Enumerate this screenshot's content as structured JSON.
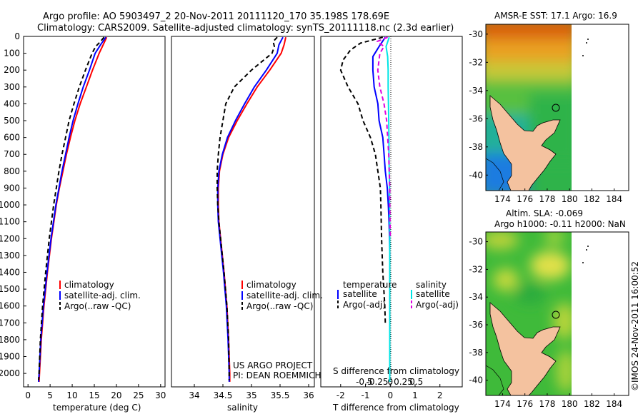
{
  "header": {
    "title_line1": "Argo profile: AO 5903497_2 20-Nov-2011 20111120_170 35.198S 178.69E",
    "title_line2": "Climatology: CARS2009. Satellite-adjusted climatology: synTS_20111118.nc (2.3d earlier)"
  },
  "stamp": "©IMOS 24-Nov-2011 16:00:52",
  "project_text": [
    "US ARGO PROJECT",
    "PI: DEAN ROEMMICH"
  ],
  "colors": {
    "climatology": "#ff0000",
    "satellite": "#0000ff",
    "argo": "#000000",
    "salinity_satellite": "#00e5e5",
    "salinity_argo": "#e000e0",
    "land": "#f4c29f"
  },
  "chart_data": [
    {
      "id": "temperature",
      "type": "line",
      "xlabel": "temperature (deg C)",
      "ylabel": "",
      "xlim": [
        -1,
        31
      ],
      "ylim": [
        2080,
        0
      ],
      "xticks": [
        0,
        5,
        10,
        15,
        20,
        25,
        30
      ],
      "yticks": [
        0,
        100,
        200,
        300,
        400,
        500,
        600,
        700,
        800,
        900,
        1000,
        1100,
        1200,
        1300,
        1400,
        1500,
        1600,
        1700,
        1800,
        1900,
        2000
      ],
      "legend": [
        "climatology",
        "satellite-adj. clim.",
        "Argo(..raw -QC)"
      ],
      "series": [
        {
          "name": "climatology",
          "style": "solid",
          "color": "#ff0000",
          "depth": [
            5,
            50,
            100,
            200,
            300,
            400,
            500,
            600,
            700,
            800,
            900,
            1000,
            1200,
            1400,
            1600,
            1800,
            2000,
            2050
          ],
          "values": [
            17.8,
            17.0,
            16.1,
            14.6,
            13.2,
            11.8,
            10.6,
            9.6,
            8.7,
            7.9,
            7.1,
            6.4,
            5.3,
            4.4,
            3.6,
            3.0,
            2.6,
            2.5
          ]
        },
        {
          "name": "satellite-adj. clim.",
          "style": "solid",
          "color": "#0000ff",
          "depth": [
            5,
            50,
            100,
            200,
            300,
            400,
            500,
            600,
            700,
            800,
            900,
            1000,
            1200,
            1400,
            1600,
            1800,
            2000,
            2050
          ],
          "values": [
            17.6,
            16.4,
            15.2,
            13.9,
            12.5,
            11.3,
            10.2,
            9.3,
            8.5,
            7.7,
            7.0,
            6.3,
            5.2,
            4.3,
            3.5,
            2.9,
            2.5,
            2.4
          ]
        },
        {
          "name": "Argo(..raw -QC)",
          "style": "dashed",
          "color": "#000000",
          "depth": [
            5,
            30,
            60,
            100,
            200,
            300,
            400,
            500,
            600,
            700,
            800,
            900,
            1000,
            1200,
            1400,
            1600,
            1800,
            2000,
            2040
          ],
          "values": [
            17.2,
            16.4,
            15.3,
            14.5,
            13.0,
            11.6,
            10.4,
            9.3,
            8.5,
            7.7,
            7.0,
            6.4,
            5.8,
            4.8,
            4.0,
            3.3,
            2.8,
            2.5,
            2.4
          ]
        }
      ]
    },
    {
      "id": "salinity",
      "type": "line",
      "xlabel": "salinity",
      "ylabel": "",
      "xlim": [
        33.6,
        36.1
      ],
      "ylim": [
        2080,
        0
      ],
      "xticks": [
        34,
        34.5,
        35,
        35.5,
        36
      ],
      "yticks": [
        0,
        100,
        200,
        300,
        400,
        500,
        600,
        700,
        800,
        900,
        1000,
        1100,
        1200,
        1300,
        1400,
        1500,
        1600,
        1700,
        1800,
        1900,
        2000
      ],
      "legend": [
        "climatology",
        "satellite-adj. clim.",
        "Argo(..raw -QC)"
      ],
      "series": [
        {
          "name": "climatology",
          "style": "solid",
          "color": "#ff0000",
          "depth": [
            5,
            50,
            100,
            200,
            300,
            400,
            500,
            600,
            700,
            800,
            900,
            1000,
            1100,
            1200,
            1400,
            1600,
            1800,
            2000,
            2050
          ],
          "values": [
            35.6,
            35.57,
            35.52,
            35.32,
            35.1,
            34.92,
            34.75,
            34.6,
            34.5,
            34.44,
            34.42,
            34.42,
            34.43,
            34.46,
            34.52,
            34.57,
            34.6,
            34.62,
            34.62
          ]
        },
        {
          "name": "satellite-adj. clim.",
          "style": "solid",
          "color": "#0000ff",
          "depth": [
            5,
            50,
            100,
            200,
            300,
            400,
            500,
            600,
            700,
            800,
            900,
            1000,
            1100,
            1200,
            1400,
            1600,
            1800,
            2000,
            2050
          ],
          "values": [
            35.55,
            35.48,
            35.45,
            35.26,
            35.05,
            34.88,
            34.72,
            34.58,
            34.49,
            34.43,
            34.41,
            34.41,
            34.42,
            34.45,
            34.51,
            34.56,
            34.59,
            34.61,
            34.61
          ]
        },
        {
          "name": "Argo(..raw -QC)",
          "style": "dashed",
          "color": "#000000",
          "depth": [
            5,
            30,
            60,
            100,
            200,
            300,
            400,
            500,
            600,
            700,
            800,
            900,
            1000,
            1100,
            1200,
            1400,
            1600,
            1800,
            2000,
            2040
          ],
          "values": [
            35.45,
            35.38,
            35.4,
            35.36,
            35.0,
            34.7,
            34.55,
            34.5,
            34.45,
            34.42,
            34.4,
            34.4,
            34.41,
            34.43,
            34.46,
            34.52,
            34.57,
            34.6,
            34.61,
            34.61
          ]
        }
      ]
    },
    {
      "id": "difference",
      "type": "line",
      "xlabel": "T difference from climatology",
      "xlabel_top": "S difference from climatology",
      "xlim": [
        -2.8,
        2.9
      ],
      "ylim": [
        2080,
        0
      ],
      "xticks": [
        -2,
        -1,
        0,
        1,
        2
      ],
      "xtick_labels": [
        "-2",
        "-1",
        "0",
        "1",
        "2"
      ],
      "top_ticks": [
        -0.5,
        -0.25,
        0,
        0.25,
        0.5
      ],
      "top_tick_labels": [
        "-0.5",
        "-0.25",
        "0",
        "0.25",
        "0.5"
      ],
      "legend_temperature_title": "temperature",
      "legend_salinity_title": "salinity",
      "legend": [
        "satellite",
        "Argo(-adj)",
        "satellite",
        "Argo(-adj)"
      ],
      "series": [
        {
          "name": "satellite",
          "group": "temperature",
          "style": "solid",
          "color": "#0000ff",
          "depth": [
            5,
            60,
            120,
            200,
            300,
            400,
            500,
            600,
            700,
            800,
            900,
            1000,
            1100,
            1200,
            1300
          ],
          "values": [
            -0.2,
            -0.45,
            -0.7,
            -0.7,
            -0.65,
            -0.5,
            -0.45,
            -0.3,
            -0.25,
            -0.2,
            -0.12,
            -0.08,
            -0.05,
            -0.03,
            -0.02
          ]
        },
        {
          "name": "Argo(-adj)",
          "group": "temperature",
          "style": "dashed",
          "color": "#000000",
          "depth": [
            5,
            40,
            80,
            140,
            200,
            300,
            400,
            500,
            600,
            700,
            800,
            900,
            1000,
            1200,
            1400,
            1600,
            1700
          ],
          "values": [
            -0.3,
            -1.2,
            -1.6,
            -1.9,
            -2.0,
            -1.7,
            -1.3,
            -1.1,
            -0.8,
            -0.6,
            -0.5,
            -0.4,
            -0.38,
            -0.35,
            -0.3,
            -0.22,
            -0.2
          ]
        },
        {
          "name": "satellite",
          "group": "salinity",
          "style": "solid",
          "color": "#00e5e5",
          "depth": [
            5,
            60,
            120,
            200,
            300,
            400,
            500,
            600,
            700,
            800,
            900,
            1000,
            1200,
            1400,
            1600,
            1800,
            2000,
            2050
          ],
          "values": [
            -0.02,
            -0.08,
            -0.05,
            -0.04,
            -0.04,
            -0.035,
            -0.03,
            -0.025,
            -0.025,
            -0.02,
            -0.015,
            -0.015,
            -0.01,
            -0.01,
            -0.01,
            -0.01,
            -0.01,
            -0.01
          ]
        },
        {
          "name": "Argo(-adj)",
          "group": "salinity",
          "style": "dashed",
          "color": "#e000e0",
          "depth": [
            5,
            30,
            60,
            100,
            200,
            300,
            400,
            500,
            600,
            700,
            800,
            900,
            1000,
            1100,
            1200
          ],
          "values": [
            -0.05,
            -0.25,
            -0.12,
            -0.2,
            -0.24,
            -0.2,
            -0.12,
            -0.07,
            -0.05,
            -0.03,
            -0.02,
            -0.01,
            -0.01,
            -0.005,
            0
          ]
        }
      ]
    },
    {
      "id": "sst_map",
      "type": "heatmap",
      "title": "AMSR-E SST: 17.1  Argo: 16.9",
      "xlim": [
        172.5,
        185.3
      ],
      "ylim": [
        -41.1,
        -29.3
      ],
      "xticks": [
        174,
        176,
        178,
        180,
        182,
        184
      ],
      "yticks": [
        -30,
        -32,
        -34,
        -36,
        -38,
        -40
      ],
      "float_position": {
        "lon": 178.69,
        "lat": -35.198
      }
    },
    {
      "id": "sla_map",
      "type": "heatmap",
      "title_line1": "Altim. SLA: -0.069",
      "title_line2": "Argo h1000: -0.11 h2000: NaN",
      "xlim": [
        172.5,
        185.3
      ],
      "ylim": [
        -41.1,
        -29.3
      ],
      "xticks": [
        174,
        176,
        178,
        180,
        182,
        184
      ],
      "yticks": [
        -30,
        -32,
        -34,
        -36,
        -38,
        -40
      ],
      "float_position": {
        "lon": 178.69,
        "lat": -35.198
      }
    }
  ]
}
